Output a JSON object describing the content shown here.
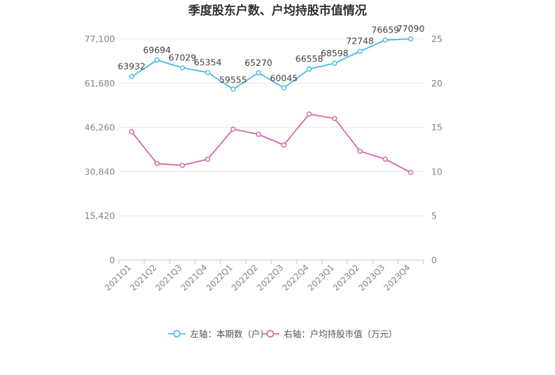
{
  "chart_data": {
    "type": "line",
    "title": "季度股东户数、户均持股市值情况",
    "categories": [
      "2021Q1",
      "2021Q2",
      "2021Q3",
      "2021Q4",
      "2022Q1",
      "2022Q2",
      "2022Q3",
      "2022Q4",
      "2023Q1",
      "2023Q2",
      "2023Q3",
      "2023Q4"
    ],
    "left_axis": {
      "ticks": [
        "0",
        "15,420",
        "30,840",
        "46,260",
        "61,680",
        "77,100"
      ],
      "ylim": [
        0,
        77100
      ]
    },
    "right_axis": {
      "ticks": [
        "0",
        "5",
        "10",
        "15",
        "20",
        "25"
      ],
      "ylim": [
        0,
        25
      ]
    },
    "series": [
      {
        "name": "左轴：本期数（户）",
        "axis": "left",
        "color": "#4dbde8",
        "values": [
          63932,
          69694,
          67029,
          65354,
          59555,
          65270,
          60045,
          66558,
          68598,
          72748,
          76659,
          77090
        ],
        "labels": [
          "63932",
          "69694",
          "67029",
          "65354",
          "59555",
          "65270",
          "60045",
          "66558",
          "68598",
          "72748",
          "76659",
          "77090"
        ]
      },
      {
        "name": "右轴：户均持股市值（万元）",
        "axis": "right",
        "color": "#d66aa8",
        "values": [
          14.5,
          10.9,
          10.7,
          11.4,
          14.8,
          14.2,
          13.0,
          16.5,
          16.0,
          12.3,
          11.4,
          9.9
        ]
      }
    ],
    "grid": true,
    "legend_position": "bottom"
  }
}
